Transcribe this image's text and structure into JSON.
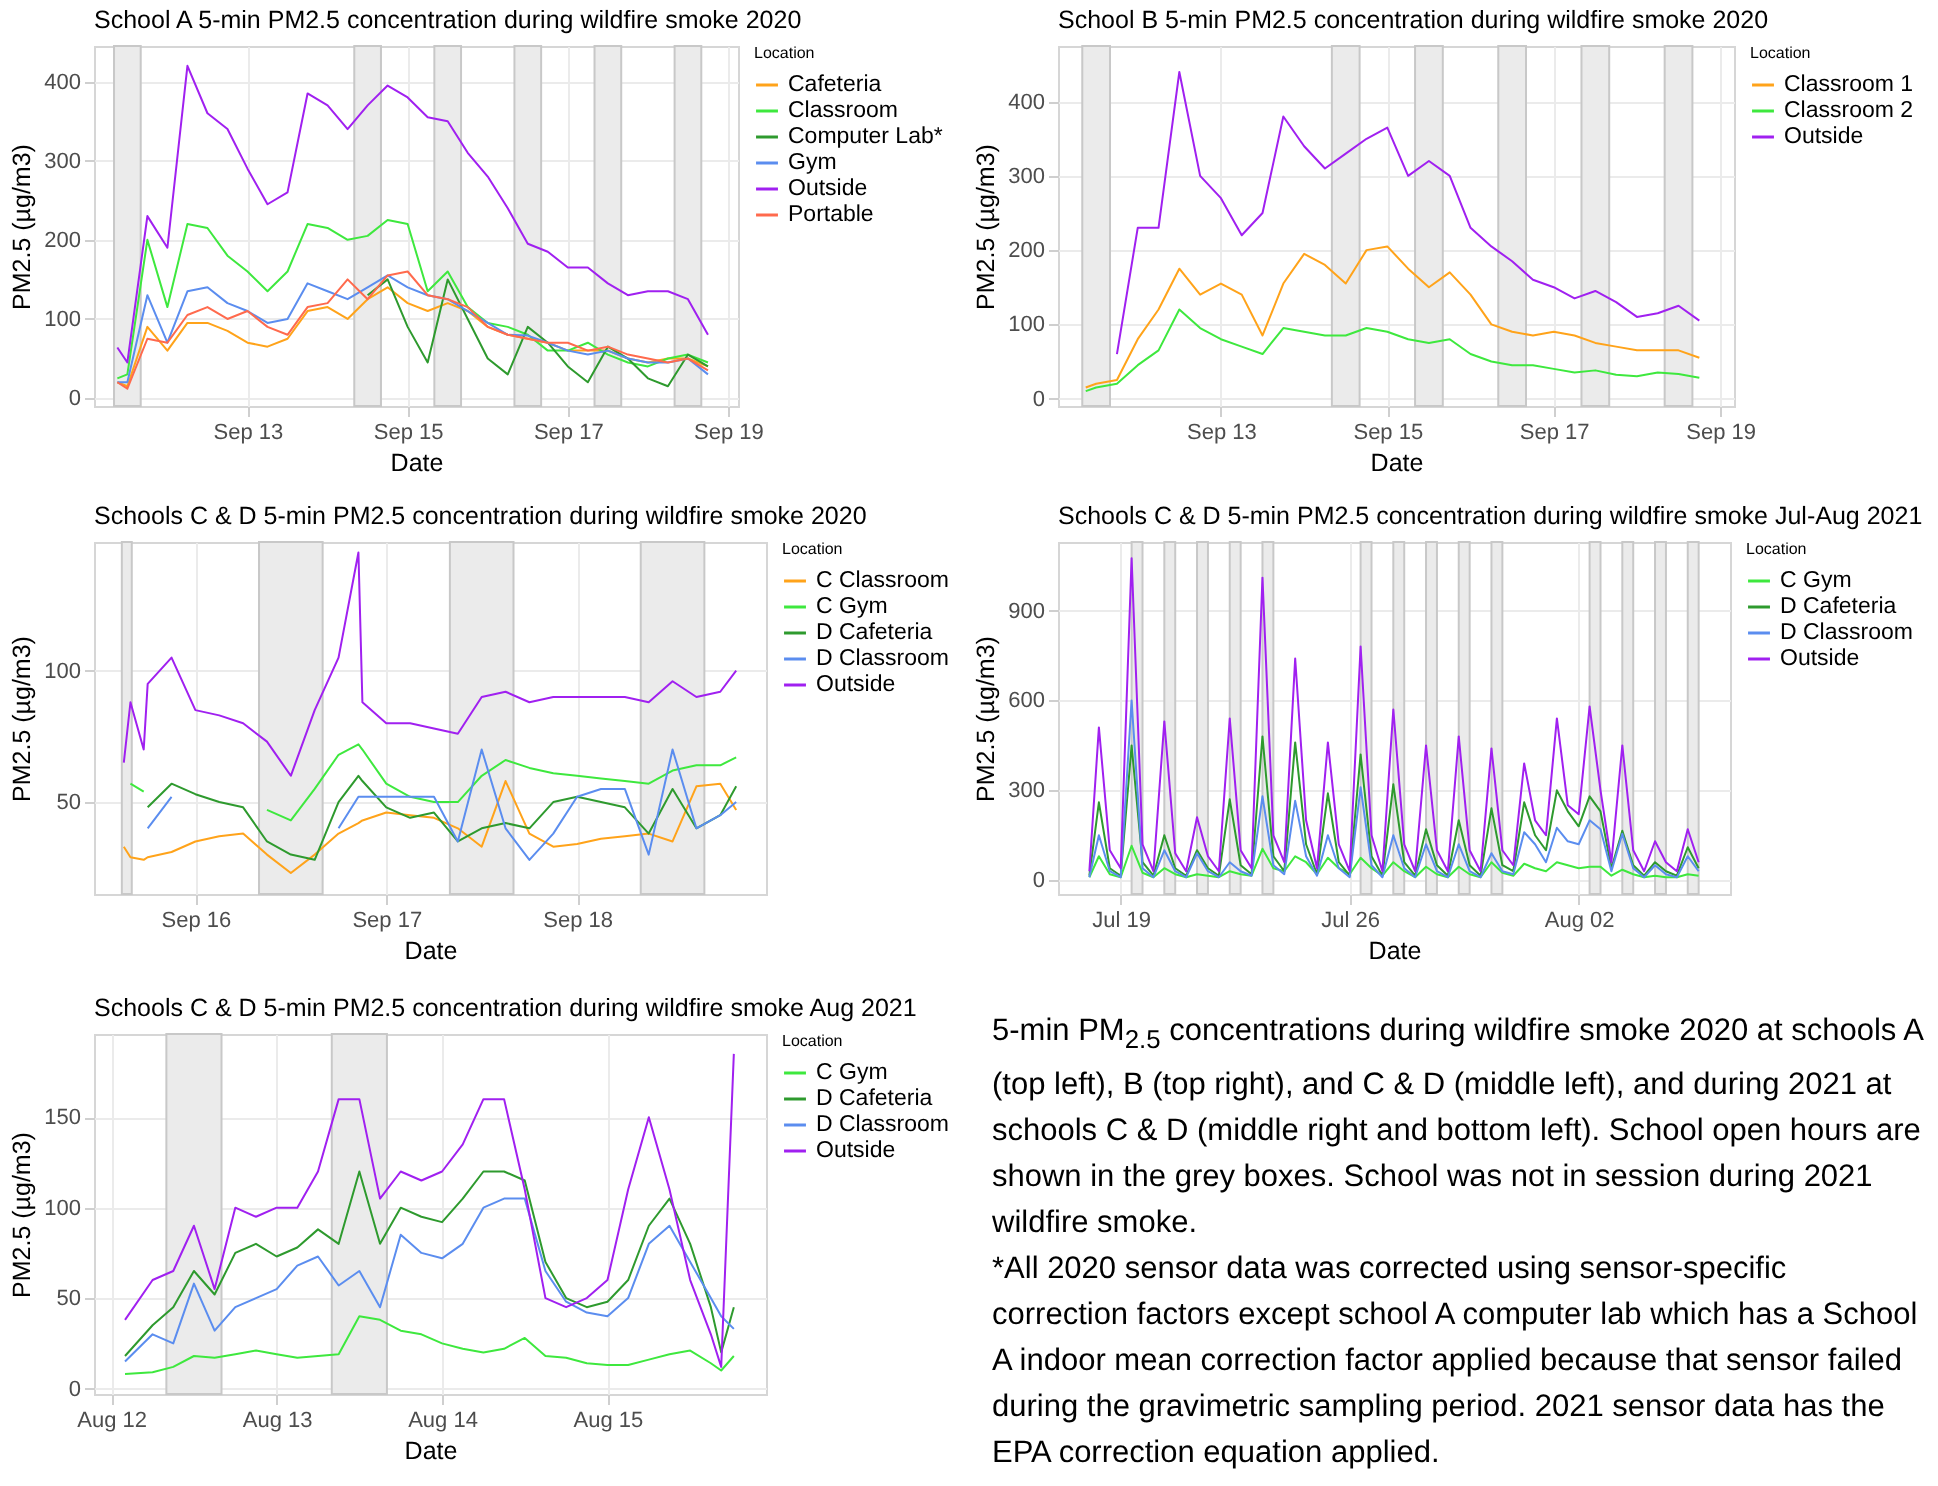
{
  "chart_data": [
    {
      "type": "line",
      "title": "School A 5-min PM2.5 concentration during wildfire smoke 2020",
      "xlabel": "Date",
      "ylabel": "PM2.5 (µg/m3)",
      "legend_title": "Location",
      "legend": "right",
      "grid": true,
      "xlim": [
        "2020-09-11T02:00",
        "2020-09-19T03:00"
      ],
      "xticks": [
        {
          "value": "2020-09-13",
          "label": "Sep 13"
        },
        {
          "value": "2020-09-15",
          "label": "Sep 15"
        },
        {
          "value": "2020-09-17",
          "label": "Sep 17"
        },
        {
          "value": "2020-09-19",
          "label": "Sep 19"
        }
      ],
      "ylim": [
        -10,
        445
      ],
      "yticks": [
        0,
        100,
        200,
        300,
        400
      ],
      "bands": [
        {
          "axis": "x",
          "from": "2020-09-11T08:00",
          "to": "2020-09-11T16:00",
          "color": "#ebebeb"
        },
        {
          "axis": "x",
          "from": "2020-09-14T08:00",
          "to": "2020-09-14T16:00",
          "color": "#ebebeb"
        },
        {
          "axis": "x",
          "from": "2020-09-15T08:00",
          "to": "2020-09-15T16:00",
          "color": "#ebebeb"
        },
        {
          "axis": "x",
          "from": "2020-09-16T08:00",
          "to": "2020-09-16T16:00",
          "color": "#ebebeb"
        },
        {
          "axis": "x",
          "from": "2020-09-17T08:00",
          "to": "2020-09-17T16:00",
          "color": "#ebebeb"
        },
        {
          "axis": "x",
          "from": "2020-09-18T08:00",
          "to": "2020-09-18T16:00",
          "color": "#ebebeb"
        }
      ],
      "x": [
        "2020-09-11T09:00",
        "2020-09-11T12:00",
        "2020-09-11T18:00",
        "2020-09-12T00:00",
        "2020-09-12T06:00",
        "2020-09-12T12:00",
        "2020-09-12T18:00",
        "2020-09-13T00:00",
        "2020-09-13T06:00",
        "2020-09-13T12:00",
        "2020-09-13T18:00",
        "2020-09-14T00:00",
        "2020-09-14T06:00",
        "2020-09-14T12:00",
        "2020-09-14T18:00",
        "2020-09-15T00:00",
        "2020-09-15T06:00",
        "2020-09-15T12:00",
        "2020-09-15T18:00",
        "2020-09-16T00:00",
        "2020-09-16T06:00",
        "2020-09-16T12:00",
        "2020-09-16T18:00",
        "2020-09-17T00:00",
        "2020-09-17T06:00",
        "2020-09-17T12:00",
        "2020-09-17T18:00",
        "2020-09-18T00:00",
        "2020-09-18T06:00",
        "2020-09-18T12:00",
        "2020-09-18T18:00"
      ],
      "series": [
        {
          "name": "Cafeteria",
          "color": "#ffa31a",
          "values": [
            20,
            15,
            90,
            60,
            95,
            95,
            85,
            70,
            65,
            75,
            110,
            115,
            100,
            125,
            140,
            120,
            110,
            120,
            110,
            90,
            80,
            75,
            70,
            60,
            60,
            60,
            50,
            45,
            50,
            50,
            40
          ]
        },
        {
          "name": "Classroom",
          "color": "#3ee83e",
          "values": [
            25,
            30,
            200,
            115,
            220,
            215,
            180,
            160,
            135,
            160,
            220,
            215,
            200,
            205,
            225,
            220,
            135,
            160,
            115,
            95,
            90,
            80,
            60,
            60,
            70,
            55,
            45,
            40,
            50,
            55,
            45
          ]
        },
        {
          "name": "Computer Lab*",
          "color": "#2e9a2e",
          "values": [
            null,
            null,
            null,
            null,
            null,
            null,
            null,
            null,
            null,
            null,
            null,
            null,
            null,
            130,
            150,
            90,
            45,
            150,
            100,
            50,
            30,
            90,
            70,
            40,
            20,
            65,
            50,
            25,
            15,
            55,
            40
          ]
        },
        {
          "name": "Gym",
          "color": "#5b8def",
          "values": [
            20,
            20,
            130,
            70,
            135,
            140,
            120,
            110,
            95,
            100,
            145,
            135,
            125,
            140,
            155,
            140,
            130,
            125,
            110,
            95,
            80,
            79,
            70,
            60,
            55,
            60,
            50,
            45,
            45,
            50,
            30
          ]
        },
        {
          "name": "Outside",
          "color": "#a020f0",
          "values": [
            64,
            45,
            230,
            190,
            420,
            360,
            340,
            290,
            245,
            260,
            385,
            370,
            340,
            370,
            395,
            380,
            355,
            350,
            310,
            280,
            240,
            195,
            185,
            165,
            165,
            145,
            130,
            135,
            135,
            125,
            80
          ]
        },
        {
          "name": "Portable",
          "color": "#ff6a4d",
          "values": [
            20,
            12,
            75,
            70,
            105,
            115,
            100,
            110,
            90,
            80,
            115,
            120,
            150,
            125,
            155,
            160,
            130,
            125,
            115,
            90,
            80,
            75,
            70,
            70,
            60,
            65,
            55,
            50,
            45,
            50,
            35
          ]
        }
      ]
    },
    {
      "type": "line",
      "title": "School B 5-min PM2.5 concentration during wildfire smoke 2020",
      "xlabel": "Date",
      "ylabel": "PM2.5 (µg/m3)",
      "legend_title": "Location",
      "legend": "right",
      "grid": true,
      "xlim": [
        "2020-09-11T01:00",
        "2020-09-19T04:00"
      ],
      "xticks": [
        {
          "value": "2020-09-13",
          "label": "Sep 13"
        },
        {
          "value": "2020-09-15",
          "label": "Sep 15"
        },
        {
          "value": "2020-09-17",
          "label": "Sep 17"
        },
        {
          "value": "2020-09-19",
          "label": "Sep 19"
        }
      ],
      "ylim": [
        -10,
        475
      ],
      "yticks": [
        0,
        100,
        200,
        300,
        400
      ],
      "bands": [
        {
          "axis": "x",
          "from": "2020-09-11T08:00",
          "to": "2020-09-11T16:00",
          "color": "#ebebeb"
        },
        {
          "axis": "x",
          "from": "2020-09-14T08:00",
          "to": "2020-09-14T16:00",
          "color": "#ebebeb"
        },
        {
          "axis": "x",
          "from": "2020-09-15T08:00",
          "to": "2020-09-15T16:00",
          "color": "#ebebeb"
        },
        {
          "axis": "x",
          "from": "2020-09-16T08:00",
          "to": "2020-09-16T16:00",
          "color": "#ebebeb"
        },
        {
          "axis": "x",
          "from": "2020-09-17T08:00",
          "to": "2020-09-17T16:00",
          "color": "#ebebeb"
        },
        {
          "axis": "x",
          "from": "2020-09-18T08:00",
          "to": "2020-09-18T16:00",
          "color": "#ebebeb"
        }
      ],
      "x": [
        "2020-09-11T09:00",
        "2020-09-11T12:00",
        "2020-09-11T18:00",
        "2020-09-12T00:00",
        "2020-09-12T06:00",
        "2020-09-12T12:00",
        "2020-09-12T18:00",
        "2020-09-13T00:00",
        "2020-09-13T06:00",
        "2020-09-13T12:00",
        "2020-09-13T18:00",
        "2020-09-14T00:00",
        "2020-09-14T06:00",
        "2020-09-14T12:00",
        "2020-09-14T18:00",
        "2020-09-15T00:00",
        "2020-09-15T06:00",
        "2020-09-15T12:00",
        "2020-09-15T18:00",
        "2020-09-16T00:00",
        "2020-09-16T06:00",
        "2020-09-16T12:00",
        "2020-09-16T18:00",
        "2020-09-17T00:00",
        "2020-09-17T06:00",
        "2020-09-17T12:00",
        "2020-09-17T18:00",
        "2020-09-18T00:00",
        "2020-09-18T06:00",
        "2020-09-18T12:00",
        "2020-09-18T18:00"
      ],
      "series": [
        {
          "name": "Classroom 1",
          "color": "#ffa31a",
          "values": [
            15,
            20,
            25,
            80,
            120,
            175,
            140,
            155,
            140,
            85,
            155,
            195,
            180,
            155,
            200,
            205,
            175,
            150,
            170,
            140,
            100,
            90,
            85,
            90,
            85,
            75,
            70,
            65,
            65,
            65,
            55
          ]
        },
        {
          "name": "Classroom 2",
          "color": "#3ee83e",
          "values": [
            10,
            15,
            20,
            45,
            65,
            120,
            95,
            80,
            70,
            60,
            95,
            90,
            85,
            85,
            95,
            90,
            80,
            75,
            80,
            60,
            50,
            45,
            45,
            40,
            35,
            38,
            32,
            30,
            35,
            33,
            28
          ]
        },
        {
          "name": "Outside",
          "color": "#a020f0",
          "values": [
            null,
            null,
            60,
            230,
            230,
            440,
            300,
            270,
            220,
            250,
            380,
            340,
            310,
            330,
            350,
            365,
            300,
            320,
            300,
            230,
            205,
            185,
            160,
            150,
            135,
            145,
            130,
            110,
            115,
            125,
            105
          ]
        }
      ]
    },
    {
      "type": "line",
      "title": "Schools C & D 5-min PM2.5 concentration during wildfire smoke 2020",
      "xlabel": "Date",
      "ylabel": "PM2.5 (µg/m3)",
      "legend_title": "Location",
      "legend": "right",
      "grid": true,
      "xlim": [
        "2020-09-15T11:15",
        "2020-09-18T23:45"
      ],
      "xticks": [
        {
          "value": "2020-09-16",
          "label": "Sep 16"
        },
        {
          "value": "2020-09-17",
          "label": "Sep 17"
        },
        {
          "value": "2020-09-18",
          "label": "Sep 18"
        }
      ],
      "ylim": [
        15,
        149
      ],
      "yticks": [
        50,
        100
      ],
      "bands": [
        {
          "axis": "x",
          "from": "2020-09-15T14:45",
          "to": "2020-09-15T16:00",
          "color": "#ebebeb"
        },
        {
          "axis": "x",
          "from": "2020-09-16T08:00",
          "to": "2020-09-16T16:00",
          "color": "#ebebeb"
        },
        {
          "axis": "x",
          "from": "2020-09-17T08:00",
          "to": "2020-09-17T16:00",
          "color": "#ebebeb"
        },
        {
          "axis": "x",
          "from": "2020-09-18T08:00",
          "to": "2020-09-18T16:00",
          "color": "#ebebeb"
        }
      ],
      "x": [
        "2020-09-15T15:00",
        "2020-09-15T15:50",
        "2020-09-15T17:30",
        "2020-09-15T18:00",
        "2020-09-15T21:00",
        "2020-09-16T00:00",
        "2020-09-16T03:00",
        "2020-09-16T06:00",
        "2020-09-16T09:00",
        "2020-09-16T12:00",
        "2020-09-16T15:00",
        "2020-09-16T18:00",
        "2020-09-16T20:30",
        "2020-09-16T21:00",
        "2020-09-17T00:00",
        "2020-09-17T03:00",
        "2020-09-17T06:00",
        "2020-09-17T09:00",
        "2020-09-17T12:00",
        "2020-09-17T15:00",
        "2020-09-17T18:00",
        "2020-09-17T21:00",
        "2020-09-18T00:00",
        "2020-09-18T03:00",
        "2020-09-18T06:00",
        "2020-09-18T09:00",
        "2020-09-18T12:00",
        "2020-09-18T15:00",
        "2020-09-18T18:00",
        "2020-09-18T20:00"
      ],
      "series": [
        {
          "name": "C Classroom",
          "color": "#ffa31a",
          "values": [
            33,
            29,
            28,
            29,
            31,
            35,
            37,
            38,
            30,
            23,
            30,
            38,
            42,
            43,
            46,
            45,
            44,
            40,
            33,
            58,
            38,
            33,
            34,
            36,
            37,
            38,
            35,
            56,
            57,
            47
          ]
        },
        {
          "name": "C Gym",
          "color": "#3ee83e",
          "values": [
            null,
            57,
            54,
            null,
            null,
            null,
            null,
            null,
            47,
            43,
            55,
            68,
            72,
            70,
            57,
            52,
            50,
            50,
            60,
            66,
            63,
            61,
            60,
            59,
            58,
            57,
            62,
            64,
            64,
            67
          ]
        },
        {
          "name": "D Cafeteria",
          "color": "#2e9a2e",
          "values": [
            null,
            null,
            null,
            48,
            57,
            53,
            50,
            48,
            35,
            30,
            28,
            50,
            60,
            58,
            48,
            44,
            46,
            35,
            40,
            42,
            40,
            50,
            52,
            50,
            48,
            38,
            55,
            40,
            45,
            56
          ]
        },
        {
          "name": "D Classroom",
          "color": "#5b8def",
          "values": [
            null,
            null,
            null,
            40,
            52,
            null,
            null,
            null,
            null,
            null,
            null,
            40,
            52,
            52,
            52,
            52,
            52,
            35,
            70,
            40,
            28,
            38,
            52,
            55,
            55,
            30,
            70,
            40,
            45,
            50
          ]
        },
        {
          "name": "Outside",
          "color": "#a020f0",
          "values": [
            65,
            88,
            70,
            95,
            105,
            85,
            83,
            80,
            73,
            60,
            85,
            105,
            145,
            88,
            80,
            80,
            78,
            76,
            90,
            92,
            88,
            90,
            90,
            90,
            90,
            88,
            96,
            90,
            92,
            100
          ]
        }
      ]
    },
    {
      "type": "line",
      "title": "Schools C & D 5-min PM2.5 concentration during wildfire smoke Jul-Aug 2021",
      "xlabel": "Date",
      "ylabel": "PM2.5 (µg/m3)",
      "legend_title": "Location",
      "legend": "right",
      "grid": true,
      "xlim": [
        "2021-07-17T02:00",
        "2021-08-06T15:00"
      ],
      "xticks": [
        {
          "value": "2021-07-19",
          "label": "Jul 19"
        },
        {
          "value": "2021-07-26",
          "label": "Jul 26"
        },
        {
          "value": "2021-08-02",
          "label": "Aug 02"
        }
      ],
      "ylim": [
        -46,
        1129
      ],
      "yticks": [
        0,
        300,
        600,
        900
      ],
      "bands": [
        {
          "axis": "x",
          "from": "2021-07-19T08:00",
          "to": "2021-07-19T16:00",
          "color": "#ebebeb"
        },
        {
          "axis": "x",
          "from": "2021-07-20T08:00",
          "to": "2021-07-20T16:00",
          "color": "#ebebeb"
        },
        {
          "axis": "x",
          "from": "2021-07-21T08:00",
          "to": "2021-07-21T16:00",
          "color": "#ebebeb"
        },
        {
          "axis": "x",
          "from": "2021-07-22T08:00",
          "to": "2021-07-22T16:00",
          "color": "#ebebeb"
        },
        {
          "axis": "x",
          "from": "2021-07-23T08:00",
          "to": "2021-07-23T16:00",
          "color": "#ebebeb"
        },
        {
          "axis": "x",
          "from": "2021-07-26T08:00",
          "to": "2021-07-26T16:00",
          "color": "#ebebeb"
        },
        {
          "axis": "x",
          "from": "2021-07-27T08:00",
          "to": "2021-07-27T16:00",
          "color": "#ebebeb"
        },
        {
          "axis": "x",
          "from": "2021-07-28T08:00",
          "to": "2021-07-28T16:00",
          "color": "#ebebeb"
        },
        {
          "axis": "x",
          "from": "2021-07-29T08:00",
          "to": "2021-07-29T16:00",
          "color": "#ebebeb"
        },
        {
          "axis": "x",
          "from": "2021-07-30T08:00",
          "to": "2021-07-30T16:00",
          "color": "#ebebeb"
        },
        {
          "axis": "x",
          "from": "2021-08-02T08:00",
          "to": "2021-08-02T16:00",
          "color": "#ebebeb"
        },
        {
          "axis": "x",
          "from": "2021-08-03T08:00",
          "to": "2021-08-03T16:00",
          "color": "#ebebeb"
        },
        {
          "axis": "x",
          "from": "2021-08-04T08:00",
          "to": "2021-08-04T16:00",
          "color": "#ebebeb"
        },
        {
          "axis": "x",
          "from": "2021-08-05T08:00",
          "to": "2021-08-05T16:00",
          "color": "#ebebeb"
        }
      ],
      "x": [
        "2021-07-18T01:00",
        "2021-07-18T08:00",
        "2021-07-18T16:00",
        "2021-07-19T00:00",
        "2021-07-19T08:00",
        "2021-07-19T16:00",
        "2021-07-20T00:00",
        "2021-07-20T08:00",
        "2021-07-20T16:00",
        "2021-07-21T00:00",
        "2021-07-21T08:00",
        "2021-07-21T16:00",
        "2021-07-22T00:00",
        "2021-07-22T08:00",
        "2021-07-22T16:00",
        "2021-07-23T00:00",
        "2021-07-23T08:00",
        "2021-07-23T16:00",
        "2021-07-24T00:00",
        "2021-07-24T08:00",
        "2021-07-24T16:00",
        "2021-07-25T00:00",
        "2021-07-25T08:00",
        "2021-07-25T16:00",
        "2021-07-26T00:00",
        "2021-07-26T08:00",
        "2021-07-26T16:00",
        "2021-07-27T00:00",
        "2021-07-27T08:00",
        "2021-07-27T16:00",
        "2021-07-28T00:00",
        "2021-07-28T08:00",
        "2021-07-28T16:00",
        "2021-07-29T00:00",
        "2021-07-29T08:00",
        "2021-07-29T16:00",
        "2021-07-30T00:00",
        "2021-07-30T08:00",
        "2021-07-30T16:00",
        "2021-07-31T00:00",
        "2021-07-31T08:00",
        "2021-07-31T16:00",
        "2021-08-01T00:00",
        "2021-08-01T08:00",
        "2021-08-01T16:00",
        "2021-08-02T00:00",
        "2021-08-02T08:00",
        "2021-08-02T16:00",
        "2021-08-03T00:00",
        "2021-08-03T08:00",
        "2021-08-03T16:00",
        "2021-08-04T00:00",
        "2021-08-04T08:00",
        "2021-08-04T16:00",
        "2021-08-05T00:00",
        "2021-08-05T08:00",
        "2021-08-05T16:00"
      ],
      "series": [
        {
          "name": "C Gym",
          "color": "#3ee83e",
          "values": [
            10,
            80,
            20,
            10,
            115,
            25,
            10,
            40,
            20,
            10,
            20,
            15,
            10,
            30,
            20,
            15,
            105,
            40,
            30,
            80,
            60,
            20,
            75,
            40,
            20,
            75,
            40,
            15,
            60,
            30,
            10,
            45,
            20,
            10,
            45,
            20,
            10,
            60,
            25,
            15,
            55,
            40,
            30,
            60,
            50,
            40,
            45,
            45,
            15,
            35,
            20,
            10,
            15,
            10,
            10,
            20,
            15
          ]
        },
        {
          "name": "D Cafeteria",
          "color": "#2e9a2e",
          "values": [
            15,
            260,
            40,
            15,
            450,
            60,
            15,
            150,
            40,
            15,
            100,
            40,
            15,
            270,
            50,
            20,
            480,
            80,
            30,
            460,
            120,
            20,
            290,
            60,
            15,
            420,
            80,
            15,
            320,
            60,
            15,
            170,
            50,
            15,
            200,
            50,
            15,
            240,
            50,
            30,
            260,
            150,
            100,
            300,
            230,
            180,
            280,
            230,
            40,
            165,
            50,
            15,
            60,
            30,
            15,
            110,
            40
          ]
        },
        {
          "name": "D Classroom",
          "color": "#5b8def",
          "values": [
            10,
            150,
            30,
            10,
            600,
            40,
            10,
            100,
            30,
            10,
            90,
            30,
            10,
            60,
            30,
            15,
            280,
            50,
            20,
            265,
            80,
            15,
            150,
            40,
            10,
            310,
            50,
            10,
            150,
            40,
            10,
            120,
            30,
            10,
            120,
            30,
            10,
            90,
            30,
            20,
            160,
            120,
            60,
            175,
            130,
            120,
            200,
            170,
            30,
            155,
            40,
            10,
            50,
            20,
            10,
            80,
            30
          ]
        },
        {
          "name": "Outside",
          "color": "#a020f0",
          "values": [
            30,
            510,
            100,
            40,
            1075,
            120,
            30,
            530,
            90,
            30,
            210,
            80,
            30,
            540,
            100,
            40,
            1010,
            150,
            60,
            740,
            200,
            40,
            460,
            120,
            30,
            780,
            150,
            30,
            570,
            120,
            30,
            450,
            100,
            30,
            480,
            100,
            30,
            440,
            100,
            50,
            390,
            200,
            150,
            540,
            250,
            220,
            580,
            300,
            60,
            450,
            100,
            30,
            130,
            60,
            30,
            170,
            60
          ]
        }
      ]
    },
    {
      "type": "line",
      "title": "Schools C & D 5-min PM2.5 concentration during wildfire smoke Aug 2021",
      "xlabel": "Date",
      "ylabel": "PM2.5 (µg/m3)",
      "legend_title": "Location",
      "legend": "right",
      "grid": true,
      "xlim": [
        "2021-08-11T21:30",
        "2021-08-15T23:00"
      ],
      "xticks": [
        {
          "value": "2021-08-12",
          "label": "Aug 12"
        },
        {
          "value": "2021-08-13",
          "label": "Aug 13"
        },
        {
          "value": "2021-08-14",
          "label": "Aug 14"
        },
        {
          "value": "2021-08-15",
          "label": "Aug 15"
        }
      ],
      "ylim": [
        -3,
        196
      ],
      "yticks": [
        0,
        50,
        100,
        150
      ],
      "bands": [
        {
          "axis": "x",
          "from": "2021-08-12T08:00",
          "to": "2021-08-12T16:00",
          "color": "#ebebeb"
        },
        {
          "axis": "x",
          "from": "2021-08-13T08:00",
          "to": "2021-08-13T16:00",
          "color": "#ebebeb"
        }
      ],
      "x": [
        "2021-08-12T02:00",
        "2021-08-12T06:00",
        "2021-08-12T09:00",
        "2021-08-12T12:00",
        "2021-08-12T15:00",
        "2021-08-12T18:00",
        "2021-08-12T21:00",
        "2021-08-13T00:00",
        "2021-08-13T03:00",
        "2021-08-13T06:00",
        "2021-08-13T09:00",
        "2021-08-13T12:00",
        "2021-08-13T15:00",
        "2021-08-13T18:00",
        "2021-08-13T21:00",
        "2021-08-14T00:00",
        "2021-08-14T03:00",
        "2021-08-14T06:00",
        "2021-08-14T09:00",
        "2021-08-14T12:00",
        "2021-08-14T15:00",
        "2021-08-14T18:00",
        "2021-08-14T21:00",
        "2021-08-15T00:00",
        "2021-08-15T03:00",
        "2021-08-15T06:00",
        "2021-08-15T09:00",
        "2021-08-15T12:00",
        "2021-08-15T15:00",
        "2021-08-15T16:30",
        "2021-08-15T18:20"
      ],
      "series": [
        {
          "name": "C Gym",
          "color": "#3ee83e",
          "values": [
            8,
            9,
            12,
            18,
            17,
            19,
            21,
            19,
            17,
            18,
            19,
            40,
            38,
            32,
            30,
            25,
            22,
            20,
            22,
            28,
            18,
            17,
            14,
            13,
            13,
            16,
            19,
            21,
            14,
            10,
            18
          ]
        },
        {
          "name": "D Cafeteria",
          "color": "#2e9a2e",
          "values": [
            18,
            35,
            45,
            65,
            52,
            75,
            80,
            73,
            78,
            88,
            80,
            120,
            80,
            100,
            95,
            92,
            105,
            120,
            120,
            115,
            70,
            50,
            45,
            48,
            60,
            90,
            105,
            80,
            45,
            20,
            45
          ]
        },
        {
          "name": "D Classroom",
          "color": "#5b8def",
          "values": [
            15,
            30,
            25,
            58,
            32,
            45,
            50,
            55,
            68,
            73,
            57,
            65,
            45,
            85,
            75,
            72,
            80,
            100,
            105,
            105,
            65,
            48,
            42,
            40,
            50,
            80,
            90,
            70,
            50,
            40,
            33
          ]
        },
        {
          "name": "Outside",
          "color": "#a020f0",
          "values": [
            38,
            60,
            65,
            90,
            55,
            100,
            95,
            100,
            100,
            120,
            160,
            160,
            105,
            120,
            115,
            120,
            135,
            160,
            160,
            110,
            50,
            45,
            50,
            60,
            110,
            150,
            110,
            60,
            30,
            12,
            185
          ]
        }
      ]
    },
    {
      "type": "other",
      "annotations": [
        "5-min PM$_{2.5}$ concentrations during wildfire smoke 2020 at schools A (top left), B (top right), and C & D (middle left), and during 2021 at schools C & D (middle right and bottom left). School open hours are shown in the grey boxes. School was not in session during 2021 wildfire smoke.",
        "*All 2020 sensor data was corrected using sensor-specific correction factors except school A computer lab which has a School A indoor mean correction factor applied because that sensor failed during the gravimetric sampling period. 2021 sensor data has the EPA correction equation applied."
      ]
    }
  ]
}
